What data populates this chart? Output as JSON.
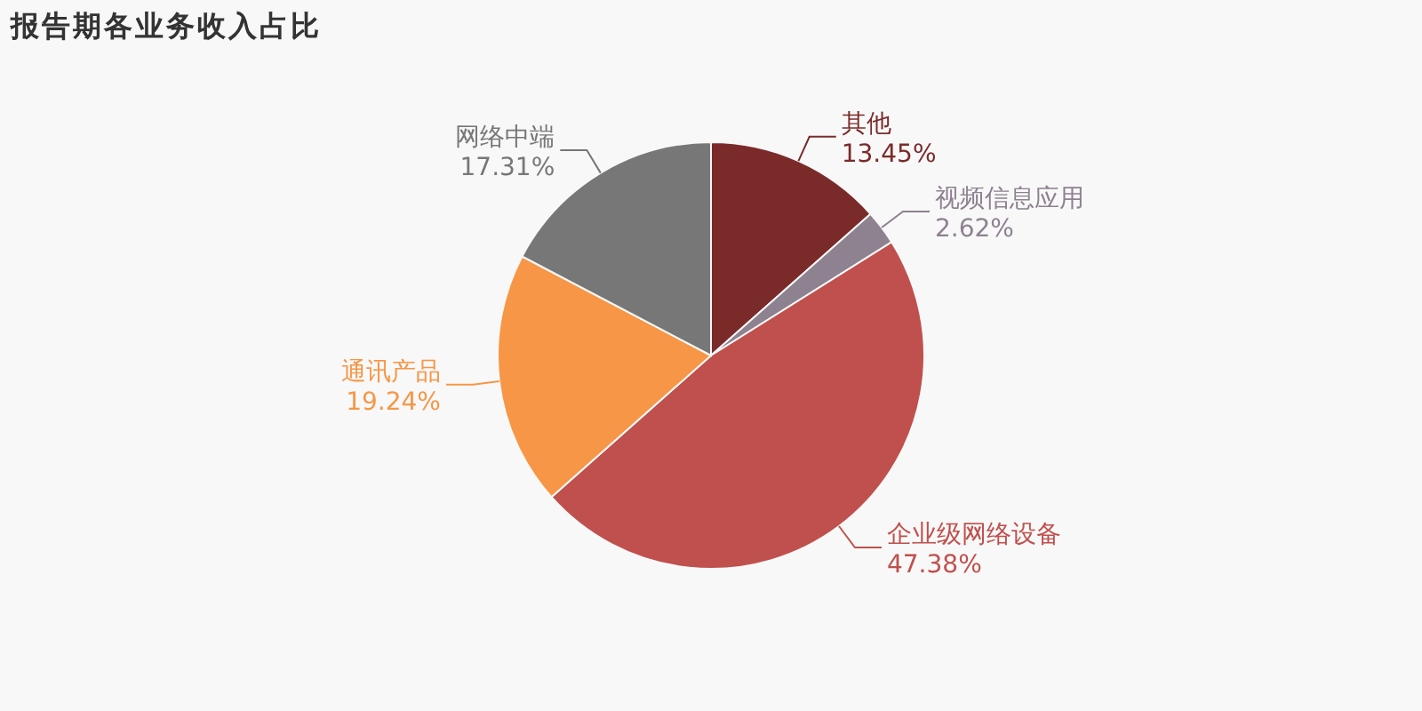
{
  "chart_data": {
    "type": "pie",
    "title": "报告期各业务收入占比",
    "categories": [
      "其他",
      "视频信息应用",
      "企业级网络设备",
      "通讯产品",
      "网络中端"
    ],
    "values": [
      13.45,
      2.62,
      47.38,
      19.24,
      17.31
    ],
    "colors": [
      "#7b2a2a",
      "#8e8190",
      "#c0504d",
      "#f79646",
      "#777777"
    ],
    "value_labels": [
      "13.45%",
      "2.62%",
      "47.38%",
      "19.24%",
      "17.31%"
    ]
  }
}
